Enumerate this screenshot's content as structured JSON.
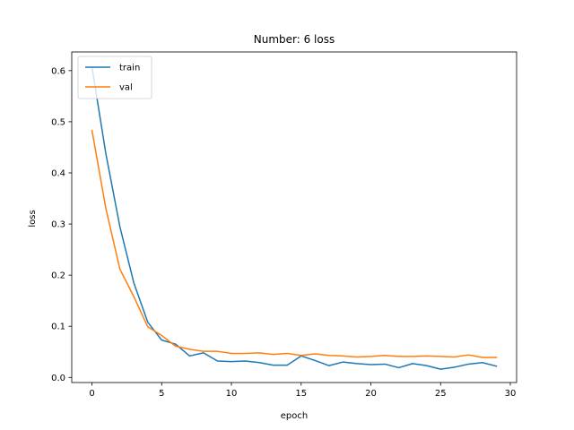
{
  "chart_data": {
    "type": "line",
    "title": "Number: 6 loss",
    "xlabel": "epoch",
    "ylabel": "loss",
    "xlim": [
      -1.45,
      30.45
    ],
    "ylim": [
      -0.01,
      0.6365
    ],
    "xticks": [
      0,
      5,
      10,
      15,
      20,
      25,
      30
    ],
    "yticks": [
      0.0,
      0.1,
      0.2,
      0.3,
      0.4,
      0.5,
      0.6
    ],
    "ytick_labels": [
      "0.0",
      "0.1",
      "0.2",
      "0.3",
      "0.4",
      "0.5",
      "0.6"
    ],
    "grid": false,
    "legend_position": "top-left",
    "x": [
      0,
      1,
      2,
      3,
      4,
      5,
      6,
      7,
      8,
      9,
      10,
      11,
      12,
      13,
      14,
      15,
      16,
      17,
      18,
      19,
      20,
      21,
      22,
      23,
      24,
      25,
      26,
      27,
      28,
      29
    ],
    "series": [
      {
        "name": "train",
        "color": "#1f77b4",
        "values": [
          0.607,
          0.437,
          0.295,
          0.185,
          0.108,
          0.073,
          0.065,
          0.042,
          0.048,
          0.032,
          0.031,
          0.032,
          0.029,
          0.024,
          0.024,
          0.042,
          0.033,
          0.023,
          0.03,
          0.027,
          0.025,
          0.026,
          0.019,
          0.027,
          0.023,
          0.016,
          0.02,
          0.026,
          0.029,
          0.022
        ]
      },
      {
        "name": "val",
        "color": "#ff7f0e",
        "values": [
          0.483,
          0.33,
          0.212,
          0.158,
          0.099,
          0.082,
          0.061,
          0.055,
          0.051,
          0.051,
          0.047,
          0.047,
          0.048,
          0.045,
          0.047,
          0.043,
          0.046,
          0.043,
          0.042,
          0.04,
          0.041,
          0.043,
          0.041,
          0.041,
          0.042,
          0.041,
          0.04,
          0.044,
          0.039,
          0.039
        ]
      }
    ]
  }
}
